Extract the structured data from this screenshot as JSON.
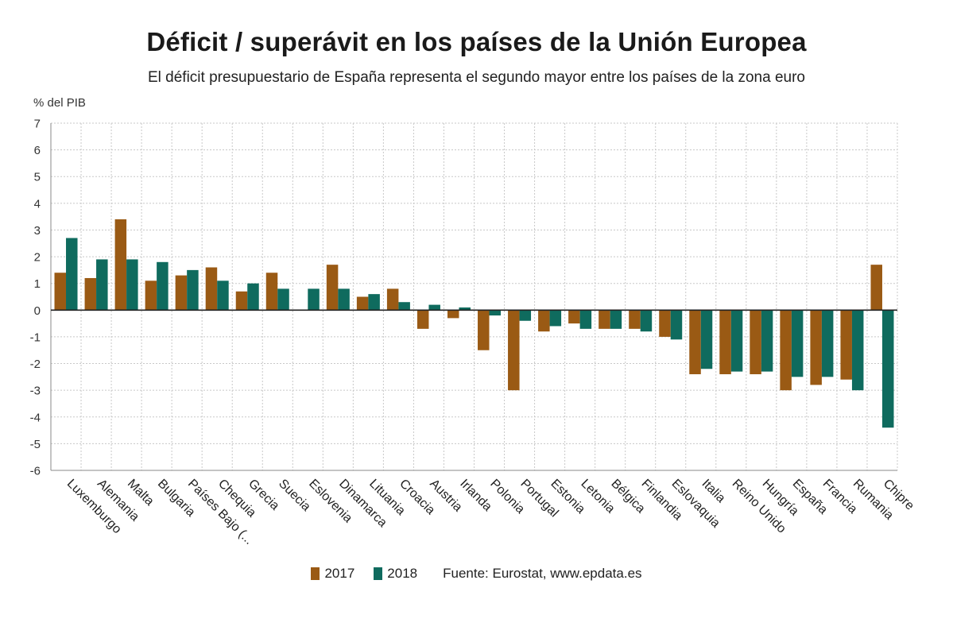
{
  "chart_data": {
    "type": "bar",
    "title": "Déficit / superávit en los países de la Unión Europea",
    "subtitle": "El déficit presupuestario de España representa el segundo mayor entre los países de la zona euro",
    "ylabel": "% del PIB",
    "xlabel": "",
    "ylim": [
      -6,
      7
    ],
    "yticks": [
      7,
      6,
      5,
      4,
      3,
      2,
      1,
      0,
      -1,
      -2,
      -3,
      -4,
      -5,
      -6
    ],
    "grid": true,
    "legend_position": "bottom",
    "categories": [
      "Luxemburgo",
      "Alemania",
      "Malta",
      "Bulgaria",
      "Países Bajo (...",
      "Chequia",
      "Grecia",
      "Suecia",
      "Eslovenia",
      "Dinamarca",
      "Lituania",
      "Croacia",
      "Austria",
      "Irlanda",
      "Polonia",
      "Portugal",
      "Estonia",
      "Letonia",
      "Bélgica",
      "Finlandia",
      "Eslovaquia",
      "Italia",
      "Reino Unido",
      "Hungría",
      "España",
      "Francia",
      "Rumania",
      "Chipre"
    ],
    "series": [
      {
        "name": "2017",
        "color": "#9a5a14",
        "values": [
          1.4,
          1.2,
          3.4,
          1.1,
          1.3,
          1.6,
          0.7,
          1.4,
          0.0,
          1.7,
          0.5,
          0.8,
          -0.7,
          -0.3,
          -1.5,
          -3.0,
          -0.8,
          -0.5,
          -0.7,
          -0.7,
          -1.0,
          -2.4,
          -2.4,
          -2.4,
          -3.0,
          -2.8,
          -2.6,
          1.7
        ]
      },
      {
        "name": "2018",
        "color": "#0f6b5e",
        "values": [
          2.7,
          1.9,
          1.9,
          1.8,
          1.5,
          1.1,
          1.0,
          0.8,
          0.8,
          0.8,
          0.6,
          0.3,
          0.2,
          0.1,
          -0.2,
          -0.4,
          -0.6,
          -0.7,
          -0.7,
          -0.8,
          -1.1,
          -2.2,
          -2.3,
          -2.3,
          -2.5,
          -2.5,
          -3.0,
          -4.4
        ]
      }
    ]
  },
  "source": "Fuente: Eurostat, www.epdata.es"
}
